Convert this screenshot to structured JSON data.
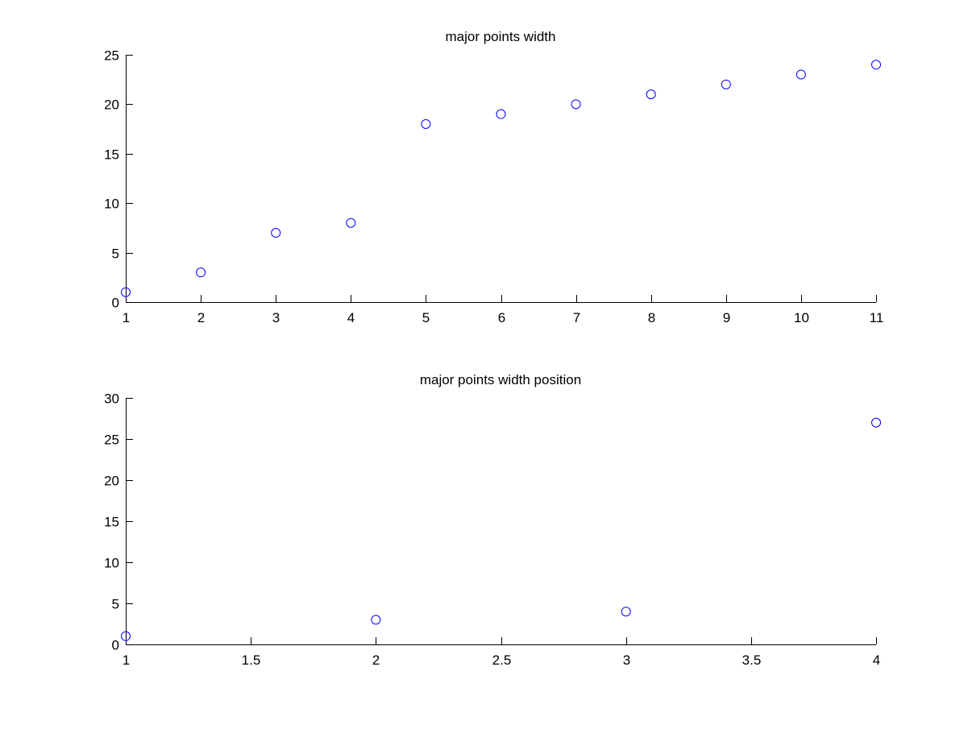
{
  "chart_data": [
    {
      "type": "scatter",
      "title": "major points width",
      "xlabel": "",
      "ylabel": "",
      "xlim": [
        1,
        11
      ],
      "ylim": [
        0,
        25
      ],
      "xticks": [
        1,
        2,
        3,
        4,
        5,
        6,
        7,
        8,
        9,
        10,
        11
      ],
      "yticks": [
        0,
        5,
        10,
        15,
        20,
        25
      ],
      "grid": false,
      "marker": "circle",
      "color": "#0000ff",
      "series": [
        {
          "x": [
            1,
            2,
            3,
            4,
            5,
            6,
            7,
            8,
            9,
            10,
            11
          ],
          "y": [
            1,
            3,
            7,
            8,
            18,
            19,
            20,
            21,
            22,
            23,
            24
          ]
        }
      ]
    },
    {
      "type": "scatter",
      "title": "major points width position",
      "xlabel": "",
      "ylabel": "",
      "xlim": [
        1,
        4
      ],
      "ylim": [
        0,
        30
      ],
      "xticks": [
        1,
        1.5,
        2,
        2.5,
        3,
        3.5,
        4
      ],
      "yticks": [
        0,
        5,
        10,
        15,
        20,
        25,
        30
      ],
      "grid": false,
      "marker": "circle",
      "color": "#0000ff",
      "series": [
        {
          "x": [
            1,
            2,
            3,
            4
          ],
          "y": [
            1,
            3,
            4,
            27
          ]
        }
      ]
    }
  ]
}
